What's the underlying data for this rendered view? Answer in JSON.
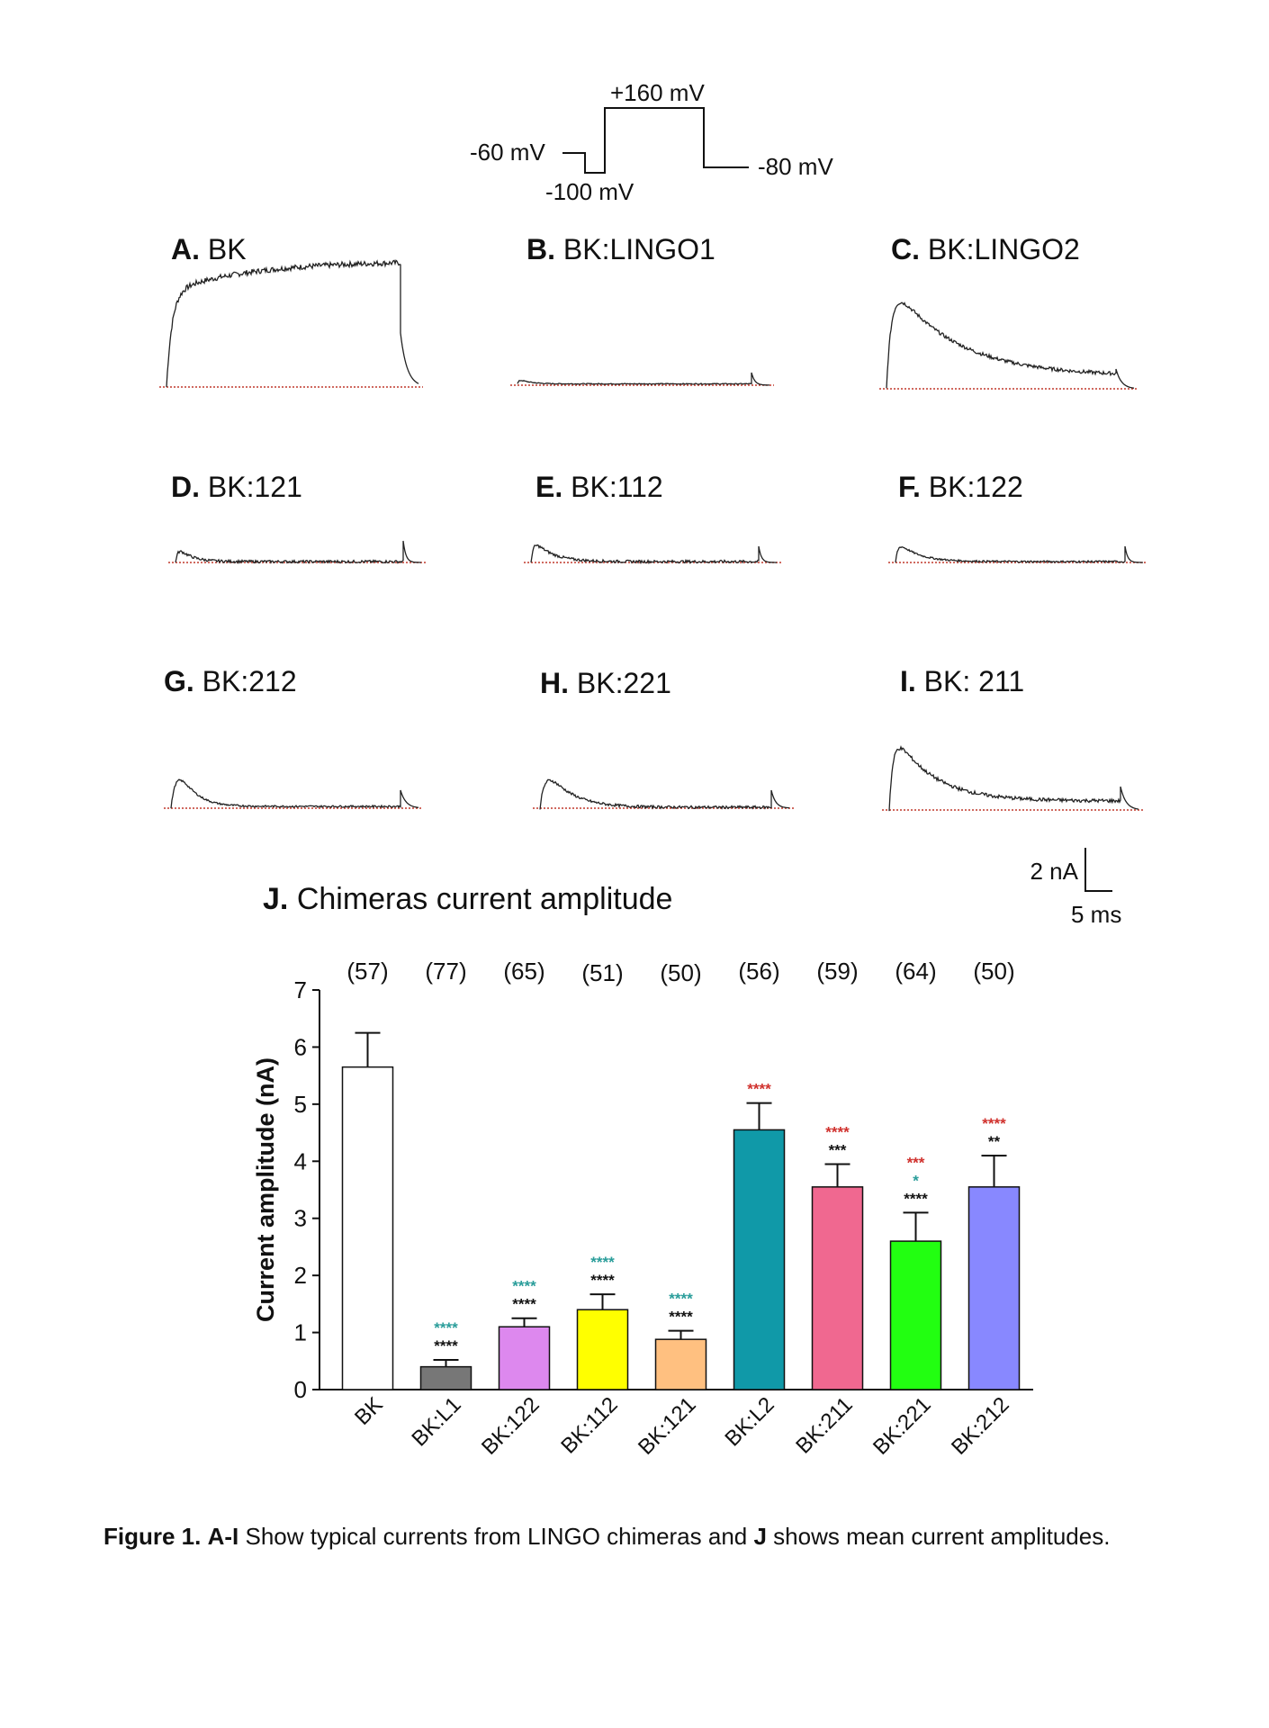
{
  "protocol": {
    "labels": [
      "+160 mV",
      "-60 mV",
      "-100 mV",
      "-80 mV"
    ]
  },
  "panels": [
    {
      "letter": "A.",
      "name": "BK"
    },
    {
      "letter": "B.",
      "name": "BK:LINGO1"
    },
    {
      "letter": "C.",
      "name": "BK:LINGO2"
    },
    {
      "letter": "D.",
      "name": "BK:121"
    },
    {
      "letter": "E.",
      "name": "BK:112"
    },
    {
      "letter": "F.",
      "name": "BK:122"
    },
    {
      "letter": "G.",
      "name": "BK:212"
    },
    {
      "letter": "H.",
      "name": "BK:221"
    },
    {
      "letter": "I.",
      "name": "BK: 211"
    }
  ],
  "scale_bar": {
    "current": "2 nA",
    "time": "5 ms"
  },
  "colors": {
    "baseline": "#c0392b",
    "sig_red": "#d0312d",
    "sig_teal": "#2a9d9a",
    "sig_black": "#111111"
  },
  "chart_data": {
    "type": "bar",
    "title_letter": "J.",
    "title": "Chimeras current amplitude",
    "ylabel": "Current amplitude (nA)",
    "xlabel": "",
    "ylim": [
      0,
      7
    ],
    "yticks": [
      "0",
      "1",
      "2",
      "3",
      "4",
      "5",
      "6",
      "7"
    ],
    "categories": [
      "BK",
      "BK:L1",
      "BK:122",
      "BK:112",
      "BK:121",
      "BK:L2",
      "BK:211",
      "BK:221",
      "BK:212"
    ],
    "values": [
      5.65,
      0.4,
      1.1,
      1.4,
      0.88,
      4.55,
      3.55,
      2.6,
      3.55
    ],
    "errors": [
      0.6,
      0.12,
      0.15,
      0.27,
      0.15,
      0.47,
      0.4,
      0.5,
      0.55
    ],
    "n_labels": [
      "(57)",
      "(77)",
      "(65)",
      "(51)",
      "(50)",
      "(56)",
      "(59)",
      "(64)",
      "(50)"
    ],
    "bar_colors": [
      "#ffffff",
      "#777777",
      "#dd88ee",
      "#ffff00",
      "#ffc080",
      "#1099a8",
      "#f06890",
      "#22ff11",
      "#8888ff"
    ],
    "significance": [
      [],
      [
        {
          "text": "****",
          "color": "teal"
        },
        {
          "text": "****",
          "color": "black"
        }
      ],
      [
        {
          "text": "****",
          "color": "teal"
        },
        {
          "text": "****",
          "color": "black"
        }
      ],
      [
        {
          "text": "****",
          "color": "teal"
        },
        {
          "text": "****",
          "color": "black"
        }
      ],
      [
        {
          "text": "****",
          "color": "teal"
        },
        {
          "text": "****",
          "color": "black"
        }
      ],
      [
        {
          "text": "****",
          "color": "red"
        }
      ],
      [
        {
          "text": "****",
          "color": "red"
        },
        {
          "text": "***",
          "color": "black"
        }
      ],
      [
        {
          "text": "***",
          "color": "red"
        },
        {
          "text": "*",
          "color": "teal"
        },
        {
          "text": "****",
          "color": "black"
        }
      ],
      [
        {
          "text": "****",
          "color": "red"
        },
        {
          "text": "**",
          "color": "black"
        }
      ]
    ]
  },
  "caption": {
    "prefix": "Figure 1.",
    "range": "A-I",
    "text1": " Show typical currents from LINGO chimeras and ",
    "j": "J",
    "text2": " shows mean current amplitudes."
  }
}
